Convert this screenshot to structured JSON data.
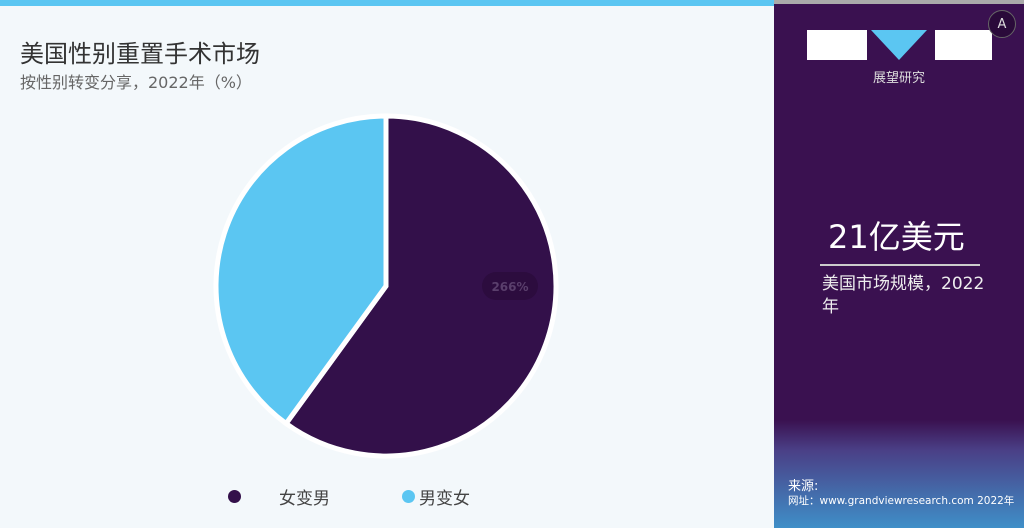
{
  "chart_data": {
    "type": "pie",
    "title": "美国性别重置手术市场",
    "subtitle": "按性别转变分享，2022年（%）",
    "categories": [
      "女变男",
      "男变女"
    ],
    "values": [
      60,
      40
    ],
    "colors": [
      "#33104a",
      "#5bc6f2"
    ],
    "data_label": "266%",
    "legend": "bottom"
  },
  "sidebar": {
    "logo_text": "展望研究",
    "translate_button": "A",
    "market_size": "21亿美元",
    "market_desc": "美国市场规模，2022年",
    "source_label": "来源:",
    "source_url": "网址：www.grandviewresearch.com 2022年"
  }
}
